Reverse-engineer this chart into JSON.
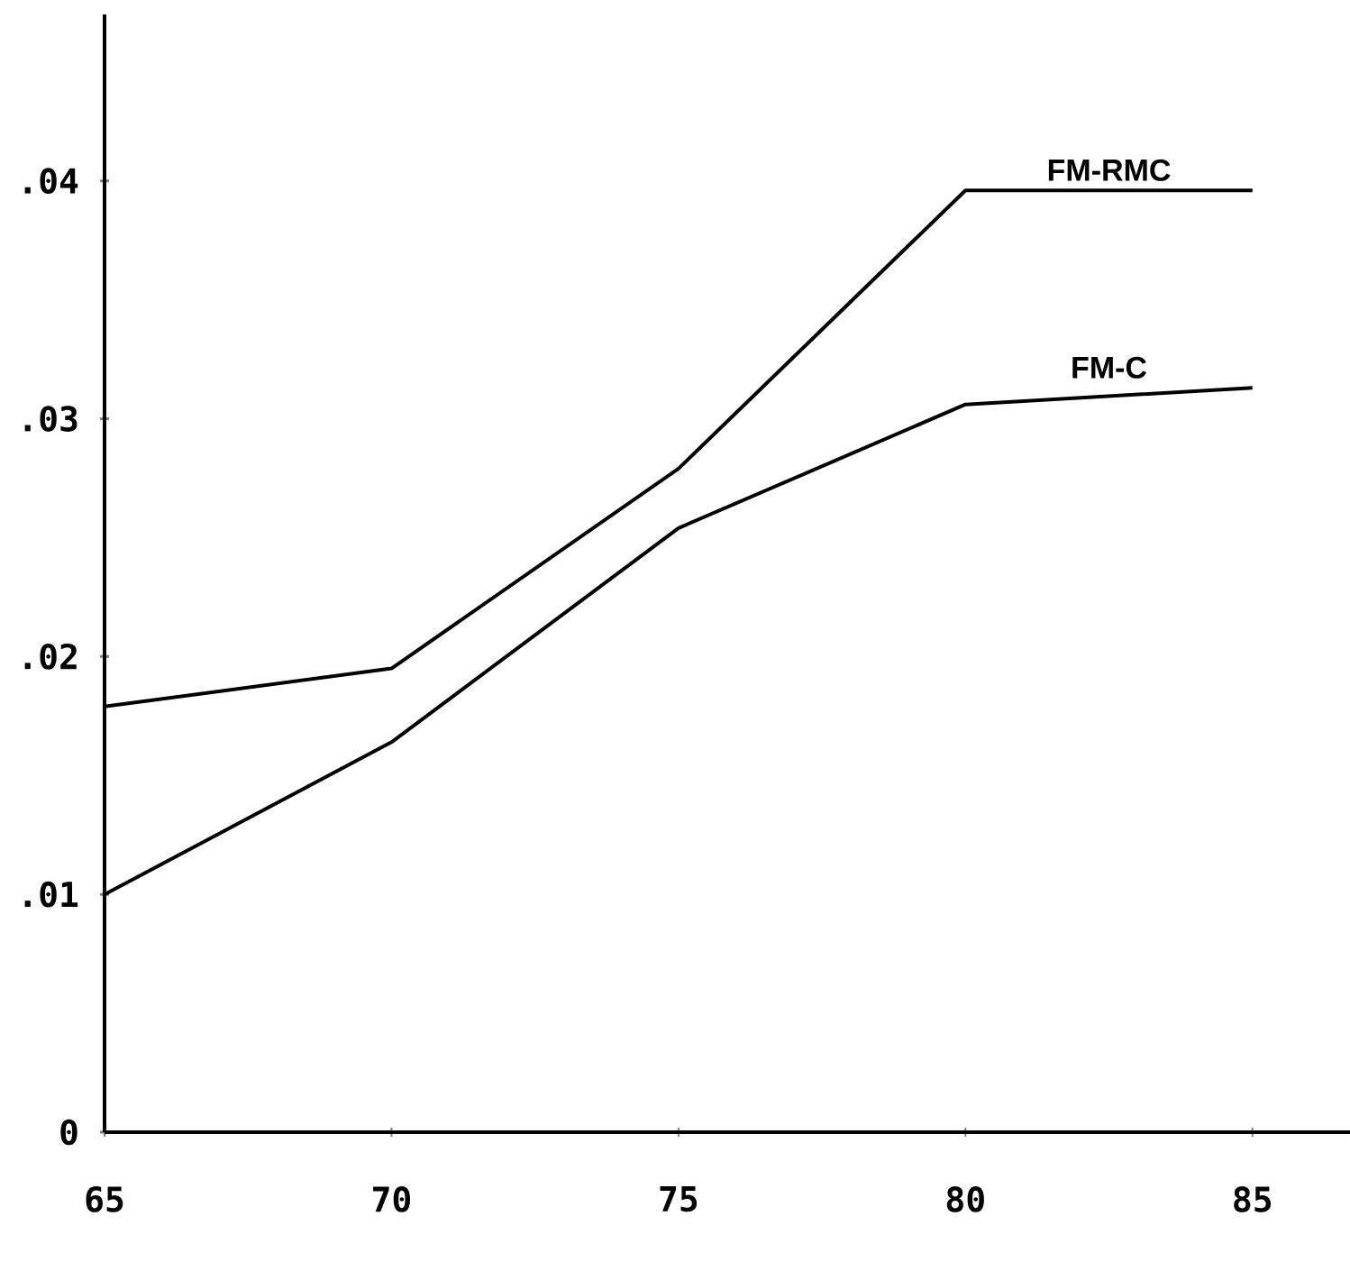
{
  "chart_data": {
    "type": "line",
    "x": [
      65,
      70,
      75,
      80,
      85
    ],
    "series": [
      {
        "name": "FM-RMC",
        "color": "#000000",
        "values": [
          0.0179,
          0.0195,
          0.0279,
          0.0396,
          0.0396
        ]
      },
      {
        "name": "FM-C",
        "color": "#000000",
        "values": [
          0.01,
          0.0164,
          0.0254,
          0.0306,
          0.0313
        ]
      }
    ],
    "xlim": [
      65,
      86.7
    ],
    "ylim": [
      0,
      0.047
    ],
    "xticks": [
      65,
      70,
      75,
      80,
      85
    ],
    "yticks": [
      0,
      {
        "value": 0.01,
        "label": ".01"
      },
      {
        "value": 0.02,
        "label": ".02"
      },
      {
        "value": 0.03,
        "label": ".03"
      },
      {
        "value": 0.04,
        "label": ".04"
      }
    ],
    "grid": false,
    "legend": false,
    "marker": "none",
    "line_style": "solid"
  }
}
